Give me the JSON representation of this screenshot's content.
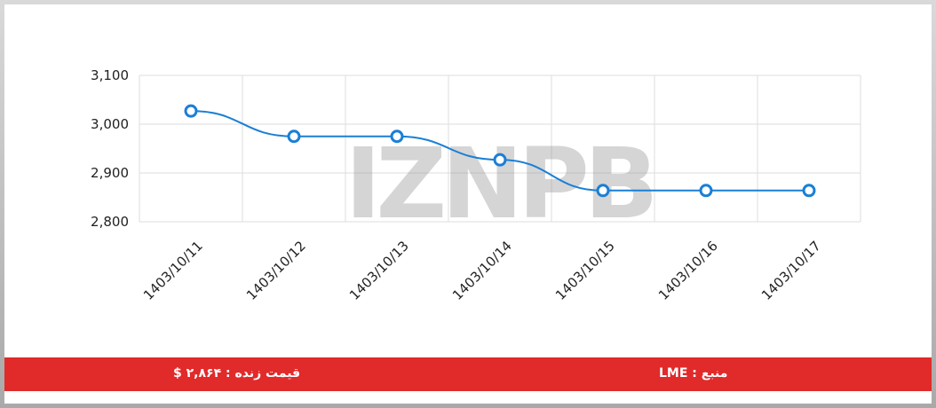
{
  "chart_data": {
    "type": "line",
    "categories": [
      "1403/10/11",
      "1403/10/12",
      "1403/10/13",
      "1403/10/14",
      "1403/10/15",
      "1403/10/16",
      "1403/10/17"
    ],
    "values": [
      3027,
      2975,
      2975,
      2927,
      2864,
      2864,
      2864
    ],
    "color": "#1a7fd6",
    "ylim": [
      2800,
      3100
    ],
    "yticks": [
      {
        "value": 2800,
        "label": "2,800"
      },
      {
        "value": 2900,
        "label": "2,900"
      },
      {
        "value": 3000,
        "label": "3,000"
      },
      {
        "value": 3100,
        "label": "3,100"
      }
    ],
    "grid": true
  },
  "watermark": "IZNPB",
  "footer": {
    "live_price": "قیمت زنده : ۲,۸۶۴ $",
    "source": "منبع : LME"
  }
}
